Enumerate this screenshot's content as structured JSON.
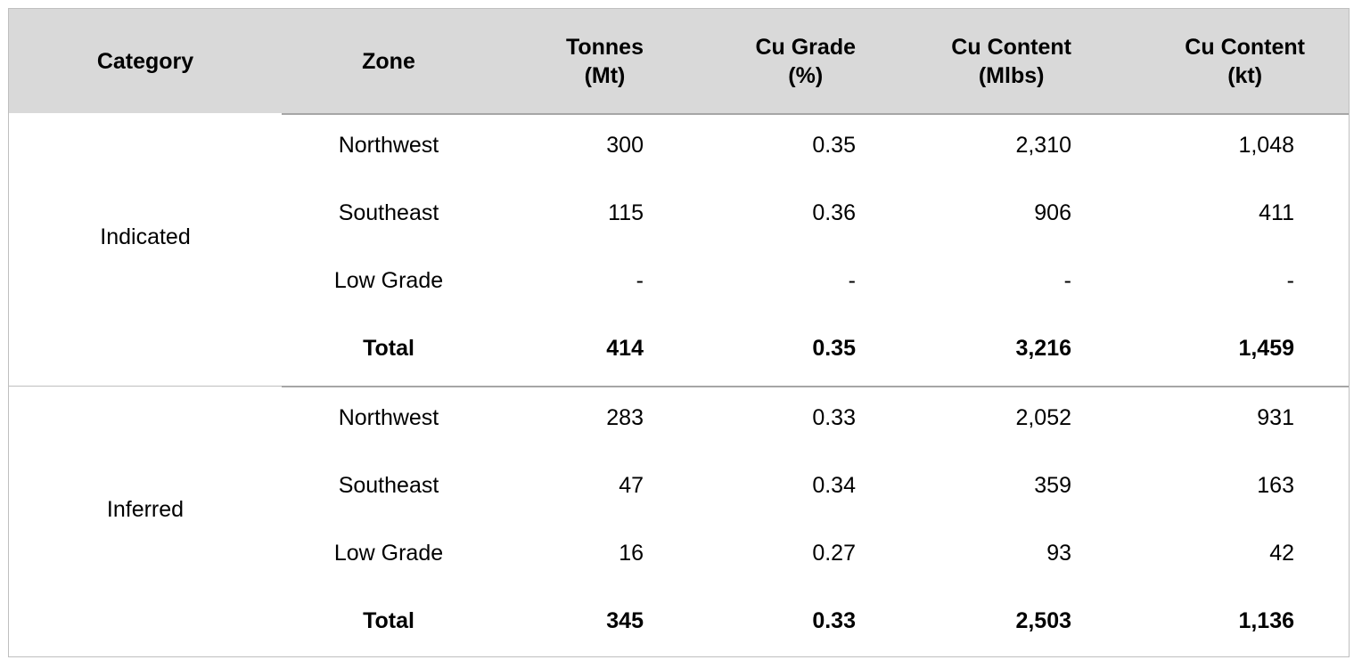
{
  "headers": {
    "category": "Category",
    "zone": "Zone",
    "tonnes": "Tonnes\n(Mt)",
    "cu_grade": "Cu Grade\n(%)",
    "cu_content_mlbs": "Cu Content\n(Mlbs)",
    "cu_content_kt": "Cu Content\n(kt)"
  },
  "sections": [
    {
      "category": "Indicated",
      "rows": [
        {
          "zone": "Northwest",
          "tonnes": "300",
          "grade": "0.35",
          "mlbs": "2,310",
          "kt": "1,048"
        },
        {
          "zone": "Southeast",
          "tonnes": "115",
          "grade": "0.36",
          "mlbs": "906",
          "kt": "411"
        },
        {
          "zone": "Low Grade",
          "tonnes": "-",
          "grade": "-",
          "mlbs": "-",
          "kt": "-"
        },
        {
          "zone": "Total",
          "tonnes": "414",
          "grade": "0.35",
          "mlbs": "3,216",
          "kt": "1,459"
        }
      ]
    },
    {
      "category": "Inferred",
      "rows": [
        {
          "zone": "Northwest",
          "tonnes": "283",
          "grade": "0.33",
          "mlbs": "2,052",
          "kt": "931"
        },
        {
          "zone": "Southeast",
          "tonnes": "47",
          "grade": "0.34",
          "mlbs": "359",
          "kt": "163"
        },
        {
          "zone": "Low Grade",
          "tonnes": "16",
          "grade": "0.27",
          "mlbs": "93",
          "kt": "42"
        },
        {
          "zone": "Total",
          "tonnes": "345",
          "grade": "0.33",
          "mlbs": "2,503",
          "kt": "1,136"
        }
      ]
    }
  ]
}
